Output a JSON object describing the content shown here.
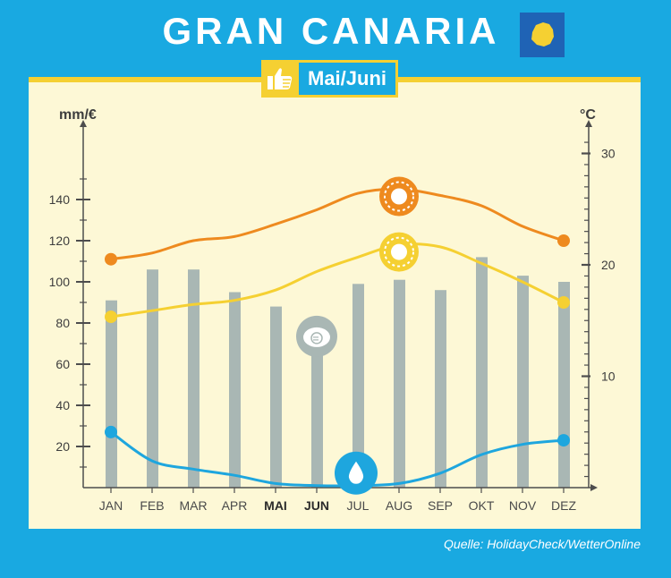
{
  "header": {
    "title": "GRAN CANARIA",
    "badge_label": "Mai/Juni",
    "badge_icon": "thumbs-up-icon",
    "flag_icon": "gran-canaria-island-icon"
  },
  "source": "Quelle: HolidayCheck/WetterOnline",
  "colors": {
    "background": "#19a9e1",
    "panel": "#fdf8d6",
    "accent_yellow": "#f5d032",
    "bars": "#a9b7b4",
    "max_temp": "#ee8a1f",
    "min_temp": "#f5d032",
    "rain": "#1ea6de"
  },
  "chart_data": {
    "type": "bar",
    "categories": [
      "JAN",
      "FEB",
      "MAR",
      "APR",
      "MAI",
      "JUN",
      "JUL",
      "AUG",
      "SEP",
      "OKT",
      "NOV",
      "DEZ"
    ],
    "highlighted_categories": [
      "MAI",
      "JUN"
    ],
    "left_axis": {
      "label": "mm/€",
      "ticks": [
        20,
        40,
        60,
        80,
        100,
        120,
        140
      ],
      "range": [
        0,
        150
      ]
    },
    "right_axis": {
      "label": "°C",
      "ticks": [
        10,
        20,
        30
      ],
      "range": [
        0,
        30
      ]
    },
    "bars": {
      "axis": "left",
      "icon": "piggy-bank-euro-icon",
      "values": [
        91,
        106,
        106,
        95,
        88,
        67,
        99,
        101,
        96,
        112,
        103,
        100
      ]
    },
    "lines": [
      {
        "axis": "left",
        "color": "#ee8a1f",
        "icon": "sun-icon",
        "values": [
          111,
          114,
          120,
          122,
          128,
          135,
          143,
          145,
          142,
          137,
          127,
          120
        ]
      },
      {
        "axis": "left",
        "color": "#f5d032",
        "icon": "sun-icon",
        "values": [
          83,
          86,
          89,
          91,
          96,
          105,
          112,
          118,
          117,
          109,
          100,
          90
        ]
      },
      {
        "axis": "left",
        "color": "#1ea6de",
        "icon": "raindrop-icon",
        "values": [
          27,
          13,
          9,
          6,
          2,
          1,
          1,
          2,
          7,
          16,
          21,
          23
        ]
      }
    ],
    "grid": false
  }
}
